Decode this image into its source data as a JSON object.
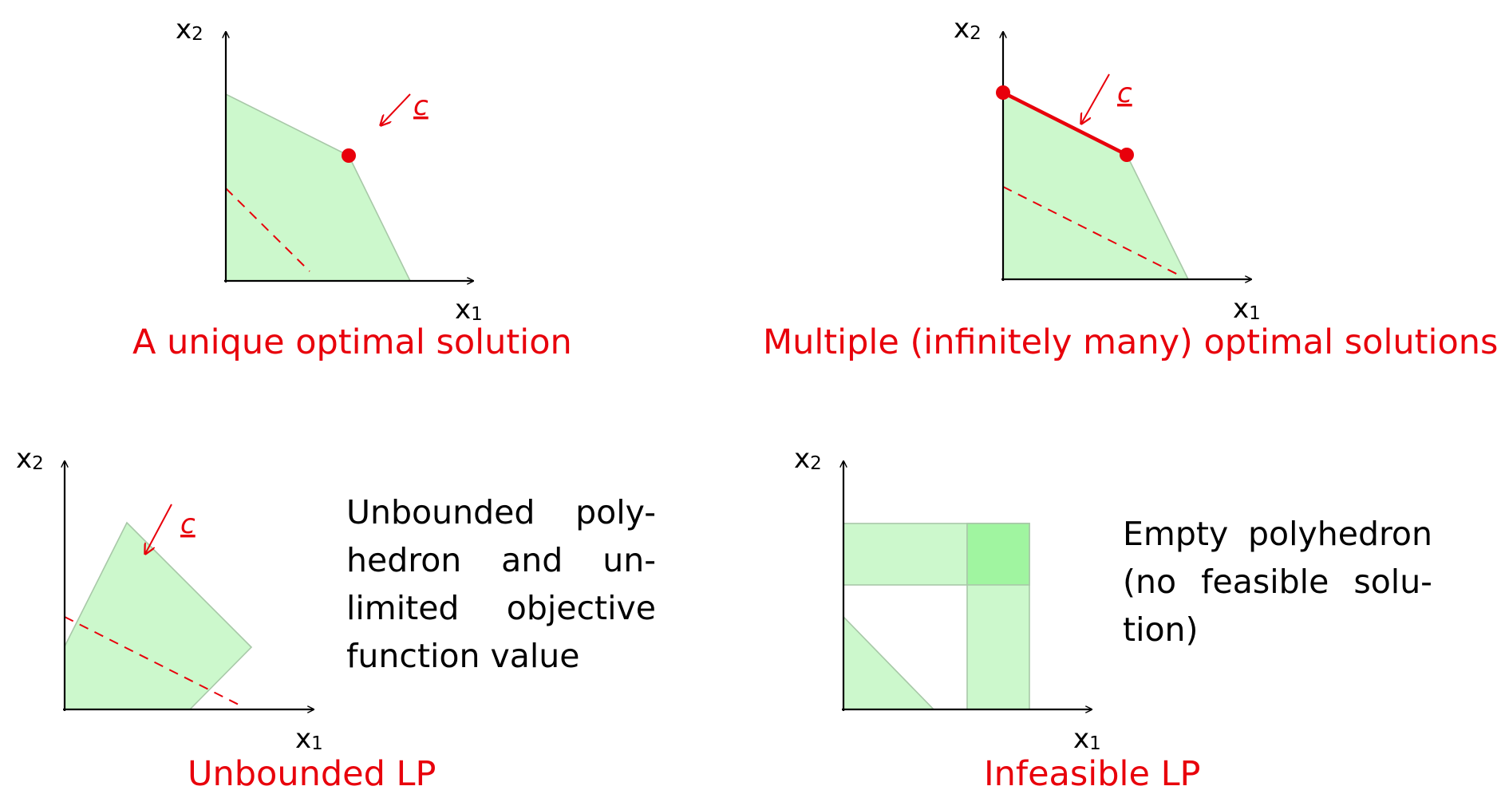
{
  "axis_labels": {
    "x": "x",
    "x_sub": "1",
    "y": "x",
    "y_sub": "2"
  },
  "objective_label": "c",
  "colors": {
    "feasible_region": "#ccf8cc",
    "overlap_region": "#a0f5a0",
    "highlight": "#e8000b",
    "axes": "#000000"
  },
  "panels": [
    {
      "id": "unique",
      "caption": "A unique optimal solution"
    },
    {
      "id": "multiple",
      "caption": "Multiple (infinitely many) optimal solutions"
    },
    {
      "id": "unbounded",
      "caption": "Unbounded LP",
      "description_lines": [
        [
          "Unbounded",
          "poly-"
        ],
        [
          "hedron",
          "and",
          "un-"
        ],
        [
          "limited",
          "objective"
        ],
        [
          "function value"
        ]
      ]
    },
    {
      "id": "infeasible",
      "caption": "Infeasible LP",
      "description_lines": [
        [
          "Empty",
          "polyhedron"
        ],
        [
          "(no",
          "feasible",
          "solu-"
        ],
        [
          "tion)"
        ]
      ]
    }
  ]
}
